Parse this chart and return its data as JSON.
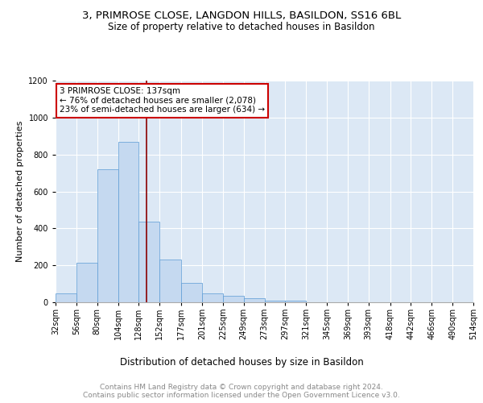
{
  "title1": "3, PRIMROSE CLOSE, LANGDON HILLS, BASILDON, SS16 6BL",
  "title2": "Size of property relative to detached houses in Basildon",
  "xlabel": "Distribution of detached houses by size in Basildon",
  "ylabel": "Number of detached properties",
  "bin_labels": [
    "32sqm",
    "56sqm",
    "80sqm",
    "104sqm",
    "128sqm",
    "152sqm",
    "177sqm",
    "201sqm",
    "225sqm",
    "249sqm",
    "273sqm",
    "297sqm",
    "321sqm",
    "345sqm",
    "369sqm",
    "393sqm",
    "418sqm",
    "442sqm",
    "466sqm",
    "490sqm",
    "514sqm"
  ],
  "bin_edges": [
    32,
    56,
    80,
    104,
    128,
    152,
    177,
    201,
    225,
    249,
    273,
    297,
    321,
    345,
    369,
    393,
    418,
    442,
    466,
    490,
    514
  ],
  "bar_heights": [
    50,
    215,
    720,
    870,
    435,
    230,
    105,
    47,
    37,
    20,
    10,
    10,
    0,
    0,
    0,
    0,
    0,
    0,
    0,
    0
  ],
  "bar_color": "#c5d9f0",
  "bar_edge_color": "#5b9bd5",
  "vline_x": 137,
  "vline_color": "#8b0000",
  "annotation_line1": "3 PRIMROSE CLOSE: 137sqm",
  "annotation_line2": "← 76% of detached houses are smaller (2,078)",
  "annotation_line3": "23% of semi-detached houses are larger (634) →",
  "annotation_box_color": "white",
  "annotation_box_edge": "#cc0000",
  "ylim": [
    0,
    1200
  ],
  "yticks": [
    0,
    200,
    400,
    600,
    800,
    1000,
    1200
  ],
  "footer_text": "Contains HM Land Registry data © Crown copyright and database right 2024.\nContains public sector information licensed under the Open Government Licence v3.0.",
  "bg_color": "#dce8f5",
  "grid_color": "white",
  "title1_fontsize": 9.5,
  "title2_fontsize": 8.5,
  "xlabel_fontsize": 8.5,
  "ylabel_fontsize": 8,
  "tick_fontsize": 7,
  "annotation_fontsize": 7.5,
  "footer_fontsize": 6.5
}
